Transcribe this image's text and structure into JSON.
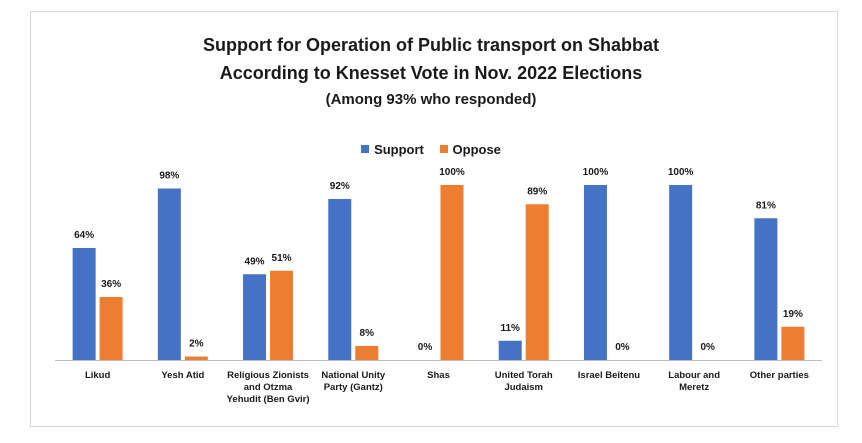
{
  "chart_data": {
    "type": "bar",
    "title": "Support for Operation of Public transport on Shabbat",
    "title_line2": "According to Knesset Vote in Nov. 2022 Elections",
    "subtitle": "(Among 93% who responded)",
    "categories": [
      "Likud",
      "Yesh Atid",
      "Religious Zionists\nand Otzma\nYehudit (Ben Gvir)",
      "National Unity\nParty (Gantz)",
      "Shas",
      "United Torah\nJudaism",
      "Israel Beitenu",
      "Labour and\nMeretz",
      "Other parties"
    ],
    "series": [
      {
        "name": "Support",
        "color": "#4472c4",
        "values": [
          64,
          98,
          49,
          92,
          0,
          11,
          100,
          100,
          81
        ],
        "labels": [
          "64%",
          "98%",
          "49%",
          "92%",
          "0%",
          "11%",
          "100%",
          "100%",
          "81%"
        ]
      },
      {
        "name": "Oppose",
        "color": "#ed7d31",
        "values": [
          36,
          2,
          51,
          8,
          100,
          89,
          0,
          0,
          19
        ],
        "labels": [
          "36%",
          "2%",
          "51%",
          "8%",
          "100%",
          "89%",
          "0%",
          "0%",
          "19%"
        ]
      }
    ],
    "ylim": [
      0,
      100
    ],
    "grid": false,
    "legend": "top-center"
  }
}
